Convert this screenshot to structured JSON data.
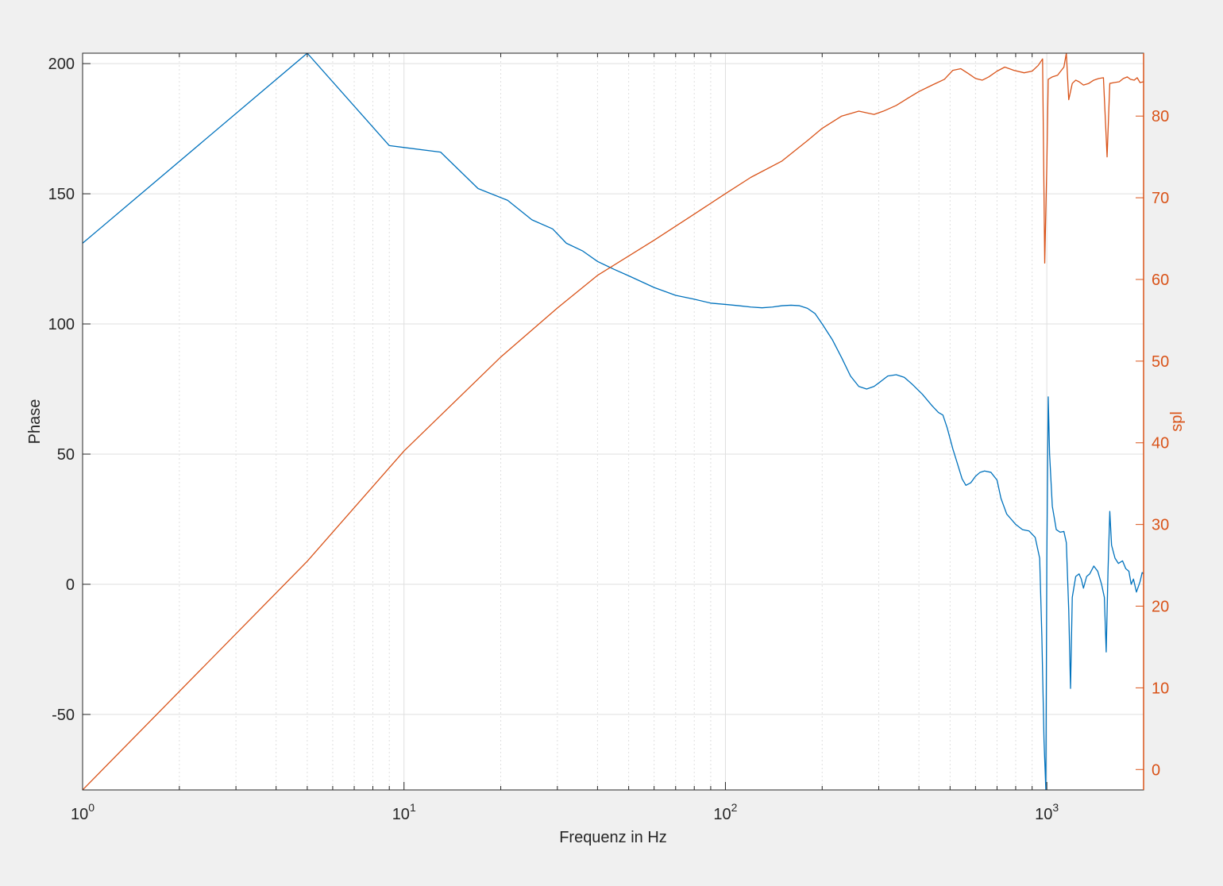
{
  "chart_data": {
    "type": "line",
    "xlabel": "Frequenz in Hz",
    "ylabel_left": "Phase",
    "ylabel_right": "spl",
    "x_scale": "log",
    "xlim": [
      1,
      2000
    ],
    "ylim_left": [
      -79,
      204
    ],
    "ylim_right": [
      -2.5,
      87.7
    ],
    "x_ticks": [
      {
        "value": 1,
        "base": "10",
        "exp": "0"
      },
      {
        "value": 10,
        "base": "10",
        "exp": "1"
      },
      {
        "value": 100,
        "base": "10",
        "exp": "2"
      },
      {
        "value": 1000,
        "base": "10",
        "exp": "3"
      }
    ],
    "y_ticks_left": [
      "-50",
      "0",
      "50",
      "100",
      "150",
      "200"
    ],
    "y_ticks_right": [
      "0",
      "10",
      "20",
      "30",
      "40",
      "50",
      "60",
      "70",
      "80"
    ],
    "grid": true,
    "colors": {
      "phase": "#0072BD",
      "spl": "#D95319",
      "axes": "#262626",
      "grid": "#dfdfdf",
      "plot_bg": "#ffffff",
      "figure_bg": "#f0f0f0"
    },
    "series": [
      {
        "axis": "left",
        "color": "#0072BD",
        "points": [
          [
            1,
            131
          ],
          [
            5,
            204
          ],
          [
            9,
            168.5
          ],
          [
            13,
            166
          ],
          [
            17,
            152
          ],
          [
            21,
            147.5
          ],
          [
            25,
            140
          ],
          [
            29,
            136.5
          ],
          [
            32,
            131
          ],
          [
            36,
            128
          ],
          [
            40,
            124
          ],
          [
            45,
            121
          ],
          [
            50,
            118.5
          ],
          [
            60,
            114
          ],
          [
            70,
            111
          ],
          [
            80,
            109.5
          ],
          [
            90,
            108
          ],
          [
            100,
            107.5
          ],
          [
            110,
            107
          ],
          [
            120,
            106.5
          ],
          [
            130,
            106.2
          ],
          [
            140,
            106.5
          ],
          [
            150,
            107
          ],
          [
            160,
            107.2
          ],
          [
            170,
            107
          ],
          [
            180,
            106
          ],
          [
            190,
            104
          ],
          [
            200,
            100
          ],
          [
            215,
            94
          ],
          [
            230,
            87
          ],
          [
            245,
            80
          ],
          [
            260,
            76
          ],
          [
            275,
            75
          ],
          [
            290,
            76
          ],
          [
            305,
            78
          ],
          [
            320,
            80
          ],
          [
            340,
            80.5
          ],
          [
            360,
            79.5
          ],
          [
            380,
            77
          ],
          [
            410,
            73
          ],
          [
            440,
            68.5
          ],
          [
            460,
            66
          ],
          [
            475,
            65
          ],
          [
            490,
            60
          ],
          [
            510,
            52
          ],
          [
            525,
            47
          ],
          [
            545,
            40.5
          ],
          [
            560,
            38
          ],
          [
            580,
            39
          ],
          [
            600,
            41.5
          ],
          [
            620,
            43
          ],
          [
            640,
            43.5
          ],
          [
            670,
            43
          ],
          [
            700,
            40
          ],
          [
            720,
            33
          ],
          [
            750,
            27
          ],
          [
            800,
            23
          ],
          [
            840,
            21
          ],
          [
            880,
            20.5
          ],
          [
            920,
            18
          ],
          [
            950,
            10
          ],
          [
            965,
            -20
          ],
          [
            980,
            -60
          ],
          [
            993,
            -79
          ],
          [
            1000,
            10
          ],
          [
            1010,
            72
          ],
          [
            1020,
            50
          ],
          [
            1040,
            30
          ],
          [
            1070,
            21
          ],
          [
            1100,
            20
          ],
          [
            1130,
            20.3
          ],
          [
            1150,
            16
          ],
          [
            1170,
            -10
          ],
          [
            1185,
            -40
          ],
          [
            1200,
            -5
          ],
          [
            1230,
            3
          ],
          [
            1260,
            4
          ],
          [
            1280,
            2
          ],
          [
            1300,
            -1.5
          ],
          [
            1330,
            3
          ],
          [
            1360,
            4
          ],
          [
            1400,
            7
          ],
          [
            1440,
            5
          ],
          [
            1480,
            0
          ],
          [
            1510,
            -5
          ],
          [
            1530,
            -26
          ],
          [
            1550,
            5
          ],
          [
            1570,
            28
          ],
          [
            1590,
            15
          ],
          [
            1630,
            10
          ],
          [
            1670,
            8
          ],
          [
            1720,
            9
          ],
          [
            1760,
            6
          ],
          [
            1800,
            5
          ],
          [
            1830,
            0
          ],
          [
            1860,
            2
          ],
          [
            1900,
            -3
          ],
          [
            1950,
            1
          ],
          [
            1980,
            4.5
          ],
          [
            2000,
            4
          ]
        ]
      },
      {
        "axis": "right",
        "color": "#D95319",
        "points": [
          [
            1,
            -2.5
          ],
          [
            5,
            25.5
          ],
          [
            10,
            39
          ],
          [
            20,
            50.5
          ],
          [
            30,
            56.5
          ],
          [
            40,
            60.5
          ],
          [
            60,
            64.8
          ],
          [
            80,
            68
          ],
          [
            100,
            70.5
          ],
          [
            120,
            72.5
          ],
          [
            150,
            74.5
          ],
          [
            180,
            77
          ],
          [
            200,
            78.5
          ],
          [
            230,
            80
          ],
          [
            260,
            80.6
          ],
          [
            290,
            80.2
          ],
          [
            310,
            80.6
          ],
          [
            340,
            81.3
          ],
          [
            370,
            82.2
          ],
          [
            400,
            83
          ],
          [
            440,
            83.8
          ],
          [
            480,
            84.5
          ],
          [
            510,
            85.6
          ],
          [
            540,
            85.8
          ],
          [
            570,
            85.2
          ],
          [
            600,
            84.6
          ],
          [
            630,
            84.4
          ],
          [
            660,
            84.8
          ],
          [
            700,
            85.5
          ],
          [
            740,
            86
          ],
          [
            790,
            85.6
          ],
          [
            850,
            85.3
          ],
          [
            900,
            85.5
          ],
          [
            940,
            86.2
          ],
          [
            970,
            87
          ],
          [
            985,
            62
          ],
          [
            1000,
            74
          ],
          [
            1010,
            84.5
          ],
          [
            1040,
            84.8
          ],
          [
            1080,
            85
          ],
          [
            1130,
            86
          ],
          [
            1150,
            87.7
          ],
          [
            1170,
            82
          ],
          [
            1200,
            84
          ],
          [
            1230,
            84.4
          ],
          [
            1260,
            84.2
          ],
          [
            1300,
            83.8
          ],
          [
            1350,
            84
          ],
          [
            1400,
            84.4
          ],
          [
            1450,
            84.6
          ],
          [
            1500,
            84.7
          ],
          [
            1540,
            75
          ],
          [
            1570,
            84
          ],
          [
            1620,
            84.1
          ],
          [
            1680,
            84.2
          ],
          [
            1730,
            84.6
          ],
          [
            1780,
            84.8
          ],
          [
            1820,
            84.5
          ],
          [
            1870,
            84.4
          ],
          [
            1910,
            84.7
          ],
          [
            1950,
            84.1
          ],
          [
            2000,
            84.2
          ]
        ]
      }
    ]
  }
}
